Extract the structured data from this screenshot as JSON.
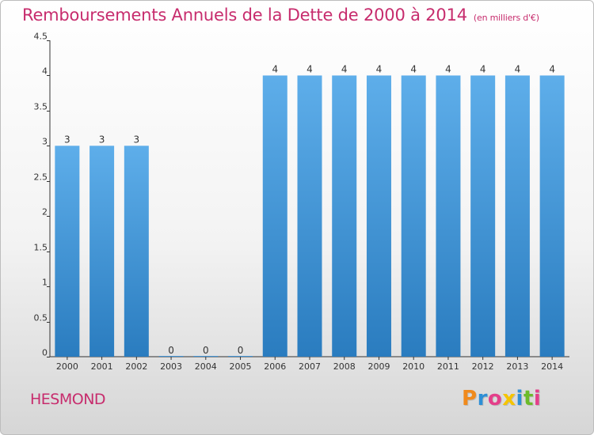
{
  "header": {
    "title": "Remboursements Annuels de la Dette de 2000 à 2014",
    "unit": "(en milliers d'€)"
  },
  "footer": {
    "commune": "HESMOND",
    "brand": "Proxiti"
  },
  "colors": {
    "title": "#c72c6d",
    "bar_top": "#5eaeea",
    "bar_bottom": "#2a7cbf",
    "axis": "#333333"
  },
  "chart_data": {
    "type": "bar",
    "categories": [
      "2000",
      "2001",
      "2002",
      "2003",
      "2004",
      "2005",
      "2006",
      "2007",
      "2008",
      "2009",
      "2010",
      "2011",
      "2012",
      "2013",
      "2014"
    ],
    "values": [
      3,
      3,
      3,
      0,
      0,
      0,
      4,
      4,
      4,
      4,
      4,
      4,
      4,
      4,
      4
    ],
    "data_labels": [
      "3",
      "3",
      "3",
      "0",
      "0",
      "0",
      "4",
      "4",
      "4",
      "4",
      "4",
      "4",
      "4",
      "4",
      "4"
    ],
    "ylim": [
      0,
      4.5
    ],
    "yticks": [
      0,
      0.5,
      1,
      1.5,
      2,
      2.5,
      3,
      3.5,
      4,
      4.5
    ],
    "ytick_labels": [
      "0",
      "0.5",
      "1",
      "1.5",
      "2",
      "2.5",
      "3",
      "3.5",
      "4",
      "4.5"
    ],
    "grid": false,
    "legend": "none"
  }
}
